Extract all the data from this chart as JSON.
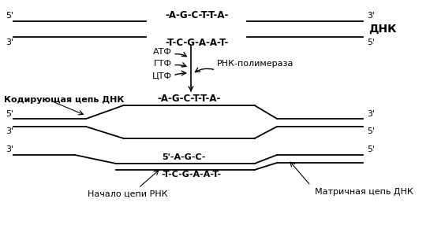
{
  "background_color": "#ffffff",
  "text_color": "#000000",
  "line_color": "#000000",
  "title_dnk": "ДНК",
  "strand1_seq": "-A-G-C-T-T-A-",
  "strand2_seq": "-T-C-G-A-A-T-",
  "atf": "АТФ",
  "gtf": "ГТФ",
  "ctf": "ЦТФ",
  "rna_pol": "РНК-полимераза",
  "coding_label": "Кодирующая цепь ДНК",
  "template_label": "Матричная цепь ДНК",
  "rna_start_label": "Начало цепи РНК",
  "coding_seq": "-A-G-C-T-T-A-",
  "template_seq_bottom": "-T-C-G-A-A-T-",
  "rna_seq": "5'-A-G-C-",
  "fontsize_small": 8,
  "fontsize_seq": 8.5,
  "fontsize_label": 9
}
